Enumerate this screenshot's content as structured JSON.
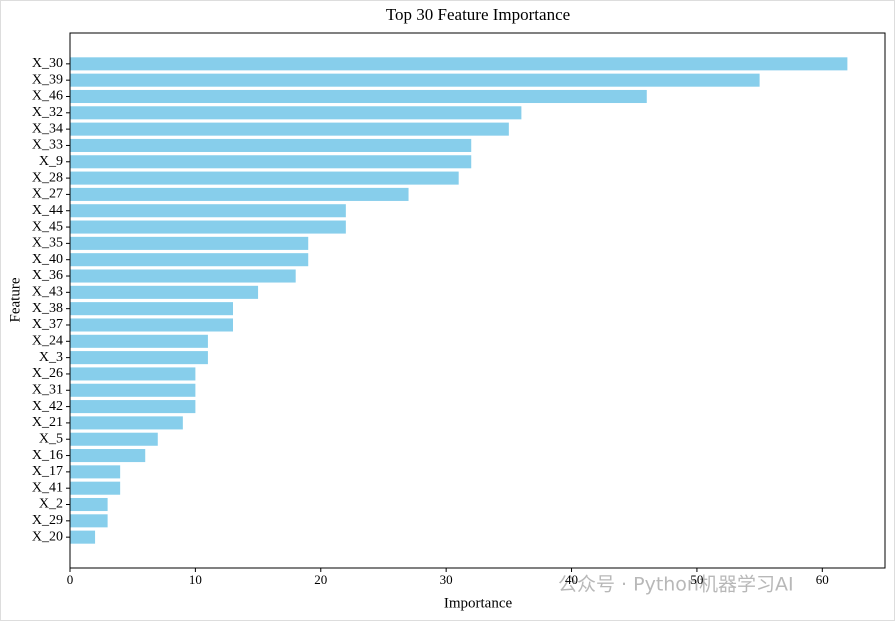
{
  "chart_data": {
    "type": "barh",
    "title": "Top 30 Feature Importance",
    "x_label": "Importance",
    "y_label": "Feature",
    "categories": [
      "X_30",
      "X_39",
      "X_46",
      "X_32",
      "X_34",
      "X_33",
      "X_9",
      "X_28",
      "X_27",
      "X_44",
      "X_45",
      "X_35",
      "X_40",
      "X_36",
      "X_43",
      "X_38",
      "X_37",
      "X_24",
      "X_3",
      "X_26",
      "X_31",
      "X_42",
      "X_21",
      "X_5",
      "X_16",
      "X_17",
      "X_41",
      "X_2",
      "X_29",
      "X_20"
    ],
    "values": [
      62,
      55,
      46,
      36,
      35,
      32,
      32,
      31,
      27,
      22,
      22,
      19,
      19,
      18,
      15,
      13,
      13,
      11,
      11,
      10,
      10,
      10,
      9,
      7,
      6,
      4,
      4,
      3,
      3,
      2
    ],
    "color": "#87ceeb",
    "xlim": [
      0,
      65
    ],
    "xticks": [
      0,
      10,
      20,
      30,
      40,
      50,
      60
    ],
    "watermark": "公众号 · Python机器学习AI"
  }
}
